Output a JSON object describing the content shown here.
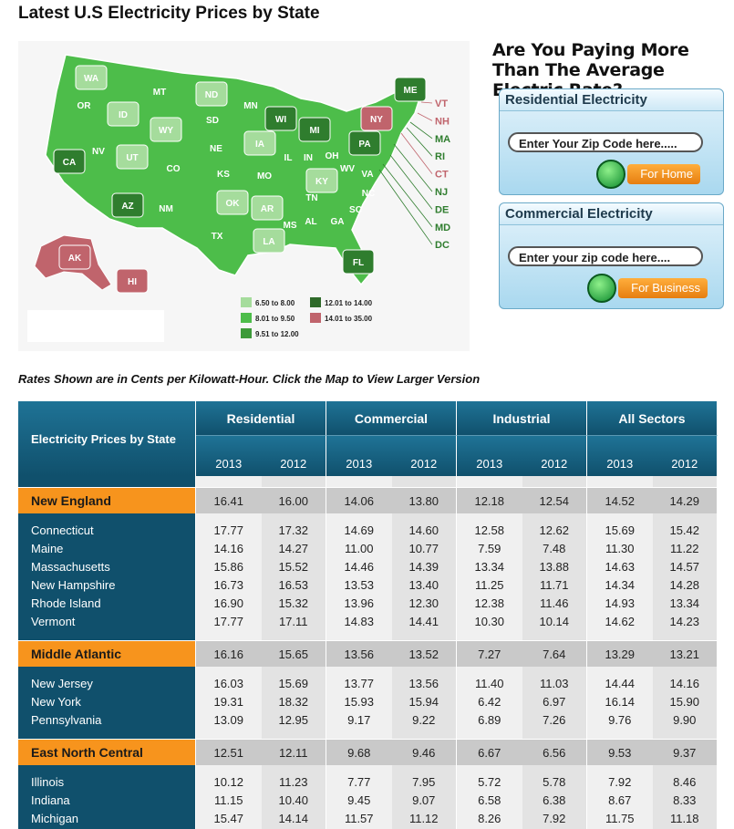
{
  "header": {
    "title": "Latest U.S Electricity Prices by State"
  },
  "map": {
    "states": [
      {
        "label": "WA",
        "color": "#a5dc9c"
      },
      {
        "label": "OR",
        "color": "#4dbd4a"
      },
      {
        "label": "ID",
        "color": "#a5dc9c"
      },
      {
        "label": "MT",
        "color": "#4dbd4a"
      },
      {
        "label": "ND",
        "color": "#a5dc9c"
      },
      {
        "label": "MN",
        "color": "#4dbd4a"
      },
      {
        "label": "WI",
        "color": "#2f7d2e"
      },
      {
        "label": "MI",
        "color": "#2f7d2e"
      },
      {
        "label": "NY",
        "color": "#c0646c"
      },
      {
        "label": "ME",
        "color": "#2f7d2e"
      },
      {
        "label": "CA",
        "color": "#2f7d2e"
      },
      {
        "label": "NV",
        "color": "#4dbd4a"
      },
      {
        "label": "UT",
        "color": "#a5dc9c"
      },
      {
        "label": "WY",
        "color": "#a5dc9c"
      },
      {
        "label": "SD",
        "color": "#4dbd4a"
      },
      {
        "label": "IA",
        "color": "#a5dc9c"
      },
      {
        "label": "IL",
        "color": "#4dbd4a"
      },
      {
        "label": "IN",
        "color": "#4dbd4a"
      },
      {
        "label": "OH",
        "color": "#4dbd4a"
      },
      {
        "label": "PA",
        "color": "#2f7d2e"
      },
      {
        "label": "NE",
        "color": "#4dbd4a"
      },
      {
        "label": "CO",
        "color": "#4dbd4a"
      },
      {
        "label": "KS",
        "color": "#4dbd4a"
      },
      {
        "label": "MO",
        "color": "#4dbd4a"
      },
      {
        "label": "WV",
        "color": "#4dbd4a"
      },
      {
        "label": "VA",
        "color": "#4dbd4a"
      },
      {
        "label": "KY",
        "color": "#a5dc9c"
      },
      {
        "label": "NC",
        "color": "#4dbd4a"
      },
      {
        "label": "TN",
        "color": "#4dbd4a"
      },
      {
        "label": "OK",
        "color": "#a5dc9c"
      },
      {
        "label": "AR",
        "color": "#a5dc9c"
      },
      {
        "label": "SC",
        "color": "#4dbd4a"
      },
      {
        "label": "GA",
        "color": "#4dbd4a"
      },
      {
        "label": "AL",
        "color": "#4dbd4a"
      },
      {
        "label": "MS",
        "color": "#4dbd4a"
      },
      {
        "label": "AZ",
        "color": "#2f7d2e"
      },
      {
        "label": "NM",
        "color": "#4dbd4a"
      },
      {
        "label": "TX",
        "color": "#4dbd4a"
      },
      {
        "label": "LA",
        "color": "#a5dc9c"
      },
      {
        "label": "FL",
        "color": "#2f7d2e"
      },
      {
        "label": "AK",
        "color": "#c0646c"
      },
      {
        "label": "HI",
        "color": "#c0646c"
      },
      {
        "label": "VT",
        "color": "#c0646c"
      },
      {
        "label": "NH",
        "color": "#c0646c"
      },
      {
        "label": "MA",
        "color": "#2f7d2e"
      },
      {
        "label": "RI",
        "color": "#2f7d2e"
      },
      {
        "label": "CT",
        "color": "#c0646c"
      },
      {
        "label": "NJ",
        "color": "#2f7d2e"
      },
      {
        "label": "DE",
        "color": "#2f7d2e"
      },
      {
        "label": "MD",
        "color": "#2f7d2e"
      },
      {
        "label": "DC",
        "color": "#2f7d2e"
      }
    ],
    "legend": [
      {
        "label": "6.50 to 8.00",
        "color": "#a5dc9c"
      },
      {
        "label": "8.01 to 9.50",
        "color": "#4dbd4a"
      },
      {
        "label": "9.51 to 12.00",
        "color": "#3e9a3a"
      },
      {
        "label": "12.01 to 14.00",
        "color": "#2f6a2a"
      },
      {
        "label": "14.01 to 35.00",
        "color": "#c0646c"
      }
    ]
  },
  "sidebar": {
    "heading": "Are You Paying More Than The Average Electric Rate?",
    "panels": [
      {
        "title": "Residential Electricity",
        "placeholder": "Enter Your Zip Code here.....",
        "button": "For Home"
      },
      {
        "title": "Commercial Electricity",
        "placeholder": "Enter your zip code here....",
        "button": "For Business"
      }
    ]
  },
  "note": "Rates Shown are in Cents per Kilowatt-Hour. Click the Map to View Larger Version",
  "table": {
    "corner": "Electricity Prices by State",
    "groups": [
      {
        "name": "Residential",
        "years": [
          "2013",
          "2012"
        ]
      },
      {
        "name": "Commercial",
        "years": [
          "2013",
          "2012"
        ]
      },
      {
        "name": "Industrial",
        "years": [
          "2013",
          "2012"
        ]
      },
      {
        "name": "All Sectors",
        "years": [
          "2013",
          "2012"
        ]
      }
    ],
    "sections": [
      {
        "name": "New England",
        "values": [
          "16.41",
          "16.00",
          "14.06",
          "13.80",
          "12.18",
          "12.54",
          "14.52",
          "14.29"
        ],
        "rows": [
          {
            "state": "Connecticut",
            "values": [
              "17.77",
              "17.32",
              "14.69",
              "14.60",
              "12.58",
              "12.62",
              "15.69",
              "15.42"
            ]
          },
          {
            "state": "Maine",
            "values": [
              "14.16",
              "14.27",
              "11.00",
              "10.77",
              "7.59",
              "7.48",
              "11.30",
              "11.22"
            ]
          },
          {
            "state": "Massachusetts",
            "values": [
              "15.86",
              "15.52",
              "14.46",
              "14.39",
              "13.34",
              "13.88",
              "14.63",
              "14.57"
            ]
          },
          {
            "state": "New Hampshire",
            "values": [
              "16.73",
              "16.53",
              "13.53",
              "13.40",
              "11.25",
              "11.71",
              "14.34",
              "14.28"
            ]
          },
          {
            "state": "Rhode Island",
            "values": [
              "16.90",
              "15.32",
              "13.96",
              "12.30",
              "12.38",
              "11.46",
              "14.93",
              "13.34"
            ]
          },
          {
            "state": "Vermont",
            "values": [
              "17.77",
              "17.11",
              "14.83",
              "14.41",
              "10.30",
              "10.14",
              "14.62",
              "14.23"
            ]
          }
        ]
      },
      {
        "name": "Middle Atlantic",
        "values": [
          "16.16",
          "15.65",
          "13.56",
          "13.52",
          "7.27",
          "7.64",
          "13.29",
          "13.21"
        ],
        "rows": [
          {
            "state": "New Jersey",
            "values": [
              "16.03",
              "15.69",
              "13.77",
              "13.56",
              "11.40",
              "11.03",
              "14.44",
              "14.16"
            ]
          },
          {
            "state": "New York",
            "values": [
              "19.31",
              "18.32",
              "15.93",
              "15.94",
              "6.42",
              "6.97",
              "16.14",
              "15.90"
            ]
          },
          {
            "state": "Pennsylvania",
            "values": [
              "13.09",
              "12.95",
              "9.17",
              "9.22",
              "6.89",
              "7.26",
              "9.76",
              "9.90"
            ]
          }
        ]
      },
      {
        "name": "East North Central",
        "values": [
          "12.51",
          "12.11",
          "9.68",
          "9.46",
          "6.67",
          "6.56",
          "9.53",
          "9.37"
        ],
        "rows": [
          {
            "state": "Illinois",
            "values": [
              "10.12",
              "11.23",
              "7.77",
              "7.95",
              "5.72",
              "5.78",
              "7.92",
              "8.46"
            ]
          },
          {
            "state": "Indiana",
            "values": [
              "11.15",
              "10.40",
              "9.45",
              "9.07",
              "6.58",
              "6.38",
              "8.67",
              "8.33"
            ]
          },
          {
            "state": "Michigan",
            "values": [
              "15.47",
              "14.14",
              "11.57",
              "11.12",
              "8.26",
              "7.92",
              "11.75",
              "11.18"
            ]
          }
        ]
      }
    ]
  }
}
